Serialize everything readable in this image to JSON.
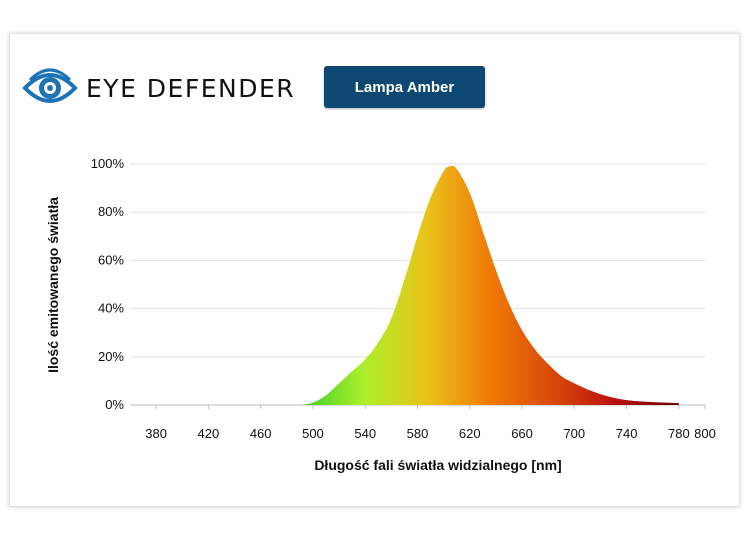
{
  "header": {
    "logo_text": "EYE DEFENDER",
    "badge_label": "Lampa Amber"
  },
  "colors": {
    "badge_bg": "#0c4872",
    "logo_blue": "#1c73b5",
    "gradient": [
      "#3ecb2a",
      "#a9f02a",
      "#e9c31a",
      "#ef7b06",
      "#d94a09",
      "#b9100e",
      "#6a0404"
    ]
  },
  "icons": {
    "logo": "eye-icon"
  },
  "chart_data": {
    "type": "area",
    "title": "",
    "xlabel": "Długość fali światła widzialnego [nm]",
    "ylabel": "Ilość emitowanego światła",
    "xlim": [
      360,
      800
    ],
    "ylim": [
      0,
      100
    ],
    "x_ticks": [
      380,
      420,
      460,
      500,
      540,
      580,
      620,
      660,
      700,
      740,
      780,
      800
    ],
    "y_ticks": [
      "0%",
      "20%",
      "40%",
      "60%",
      "80%",
      "100%"
    ],
    "grid": true,
    "series": [
      {
        "x": [
          490,
          500,
          510,
          520,
          530,
          540,
          550,
          560,
          570,
          580,
          590,
          600,
          605,
          610,
          620,
          630,
          640,
          650,
          660,
          670,
          680,
          690,
          700,
          710,
          720,
          730,
          740,
          750,
          760,
          770,
          780
        ],
        "y": [
          0,
          1,
          4,
          9,
          14,
          19,
          26,
          36,
          52,
          70,
          86,
          97,
          99,
          98,
          88,
          72,
          56,
          42,
          31,
          23,
          17,
          12,
          9,
          6.5,
          4.5,
          3,
          2,
          1.5,
          1.2,
          1,
          0.8
        ]
      }
    ]
  }
}
